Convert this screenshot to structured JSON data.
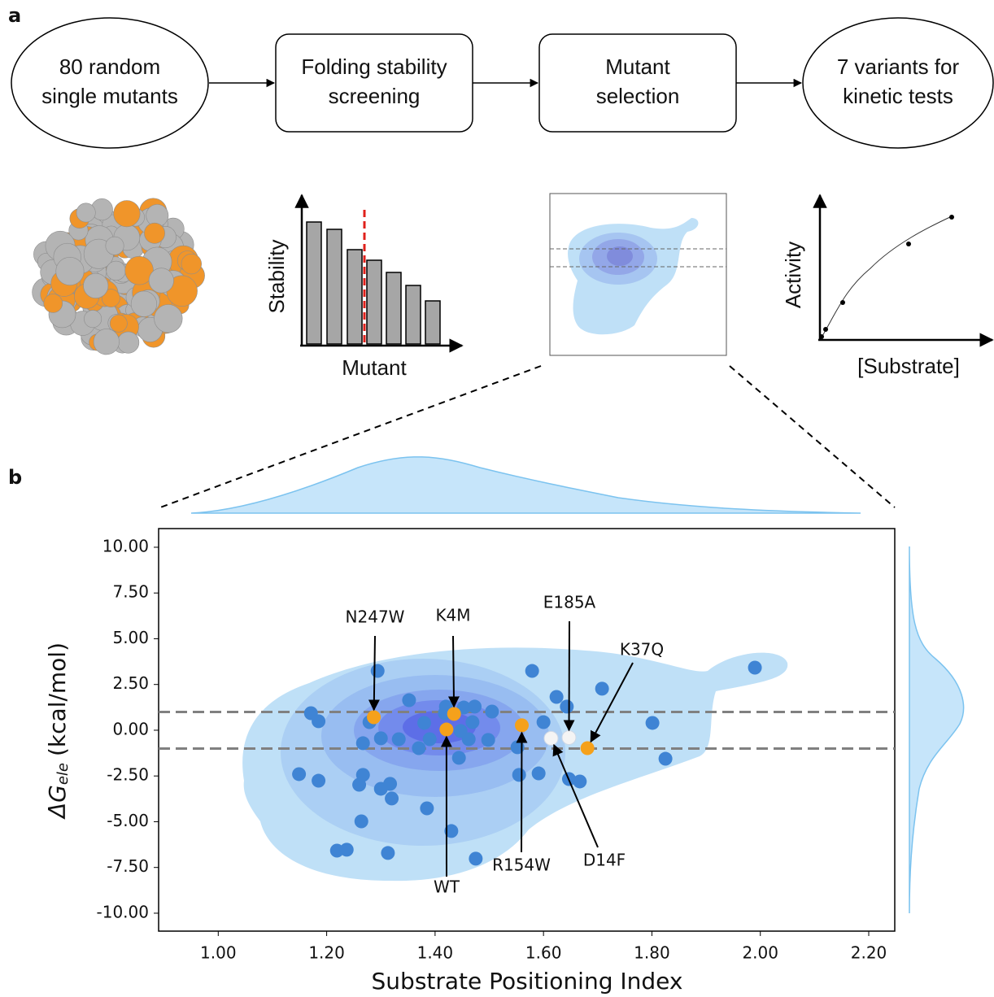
{
  "panel_labels": [
    "a",
    "b"
  ],
  "flowchart": {
    "nodes": [
      {
        "lines": [
          "80 random",
          "single mutants"
        ]
      },
      {
        "lines": [
          "Folding stability",
          "screening"
        ]
      },
      {
        "lines": [
          "Mutant",
          "selection"
        ]
      },
      {
        "lines": [
          "7 variants for",
          "kinetic tests"
        ]
      }
    ]
  },
  "icons": {
    "stability_ylabel": "Stability",
    "stability_xlabel": "Mutant",
    "activity_ylabel": "Activity",
    "activity_xlabel": "[Substrate]"
  },
  "chart_data": {
    "type": "scatter",
    "xlabel": "Substrate Positioning Index",
    "ylabel": {
      "main": "ΔG",
      "sub": "ele",
      "unit": "(kcal/mol)"
    },
    "xlim": [
      0.89,
      2.248
    ],
    "ylim": [
      -10.98,
      11.02
    ],
    "xticks": [
      {
        "value": 1,
        "label": "1.00"
      },
      {
        "value": 1.2,
        "label": "1.20"
      },
      {
        "value": 1.4,
        "label": "1.40"
      },
      {
        "value": 1.6,
        "label": "1.60"
      },
      {
        "value": 1.8,
        "label": "1.80"
      },
      {
        "value": 2,
        "label": "2.00"
      },
      {
        "value": 2.2,
        "label": "2.20"
      }
    ],
    "yticks": [
      {
        "value": 10,
        "label": "10.00"
      },
      {
        "value": 7.5,
        "label": "7.50"
      },
      {
        "value": 5,
        "label": "5.00"
      },
      {
        "value": 2.5,
        "label": "2.50"
      },
      {
        "value": 0,
        "label": "0.00"
      },
      {
        "value": -2.5,
        "label": "-2.50"
      },
      {
        "value": -5,
        "label": "-5.00"
      },
      {
        "value": -7.5,
        "label": "-7.50"
      },
      {
        "value": -10,
        "label": "-10.00"
      }
    ],
    "hlines": [
      1,
      -1
    ],
    "hline_color": "#808080",
    "points": {
      "color": "#3f84d4",
      "x": [
        1.294,
        1.352,
        1.171,
        1.185,
        1.279,
        1.38,
        1.418,
        1.42,
        1.453,
        1.473,
        1.505,
        1.469,
        1.3,
        1.267,
        1.333,
        1.37,
        1.39,
        1.447,
        1.462,
        1.444,
        1.498,
        1.552,
        1.579,
        1.624,
        1.6,
        1.643,
        1.708,
        1.801,
        1.825,
        1.99,
        1.149,
        1.185,
        1.267,
        1.26,
        1.3,
        1.317,
        1.32,
        1.264,
        1.385,
        1.43,
        1.555,
        1.591,
        1.647,
        1.667,
        1.219,
        1.237,
        1.313,
        1.475
      ],
      "y": [
        3.24,
        1.64,
        0.93,
        0.49,
        0.44,
        0.4,
        0.93,
        1.29,
        1.24,
        1.29,
        1.02,
        0.44,
        -0.44,
        -0.71,
        -0.49,
        -0.98,
        -0.49,
        -0.04,
        -0.49,
        -1.51,
        -0.53,
        -0.93,
        3.24,
        1.82,
        0.44,
        1.29,
        2.27,
        0.4,
        -1.56,
        3.42,
        -2.4,
        -2.76,
        -2.44,
        -2.98,
        -3.2,
        -2.93,
        -3.73,
        -4.98,
        -4.27,
        -5.51,
        -2.44,
        -2.36,
        -2.67,
        -2.8,
        -6.58,
        -6.53,
        -6.71,
        -7.02
      ]
    },
    "highlights": [
      {
        "label": "N247W",
        "x": 1.287,
        "y": 0.71,
        "color": "#f5a11b"
      },
      {
        "label": "K4M",
        "x": 1.435,
        "y": 0.89,
        "color": "#f5a11b"
      },
      {
        "label": "WT",
        "x": 1.421,
        "y": 0.04,
        "color": "#f5a11b"
      },
      {
        "label": "R154W",
        "x": 1.56,
        "y": 0.27,
        "color": "#f5a11b"
      },
      {
        "label": "K37Q",
        "x": 1.681,
        "y": -0.98,
        "color": "#f5a11b"
      },
      {
        "label": "E185A",
        "x": 1.647,
        "y": -0.4,
        "color": "#f4f4f4"
      },
      {
        "label": "D14F",
        "x": 1.614,
        "y": -0.44,
        "color": "#f4f4f4"
      }
    ]
  }
}
